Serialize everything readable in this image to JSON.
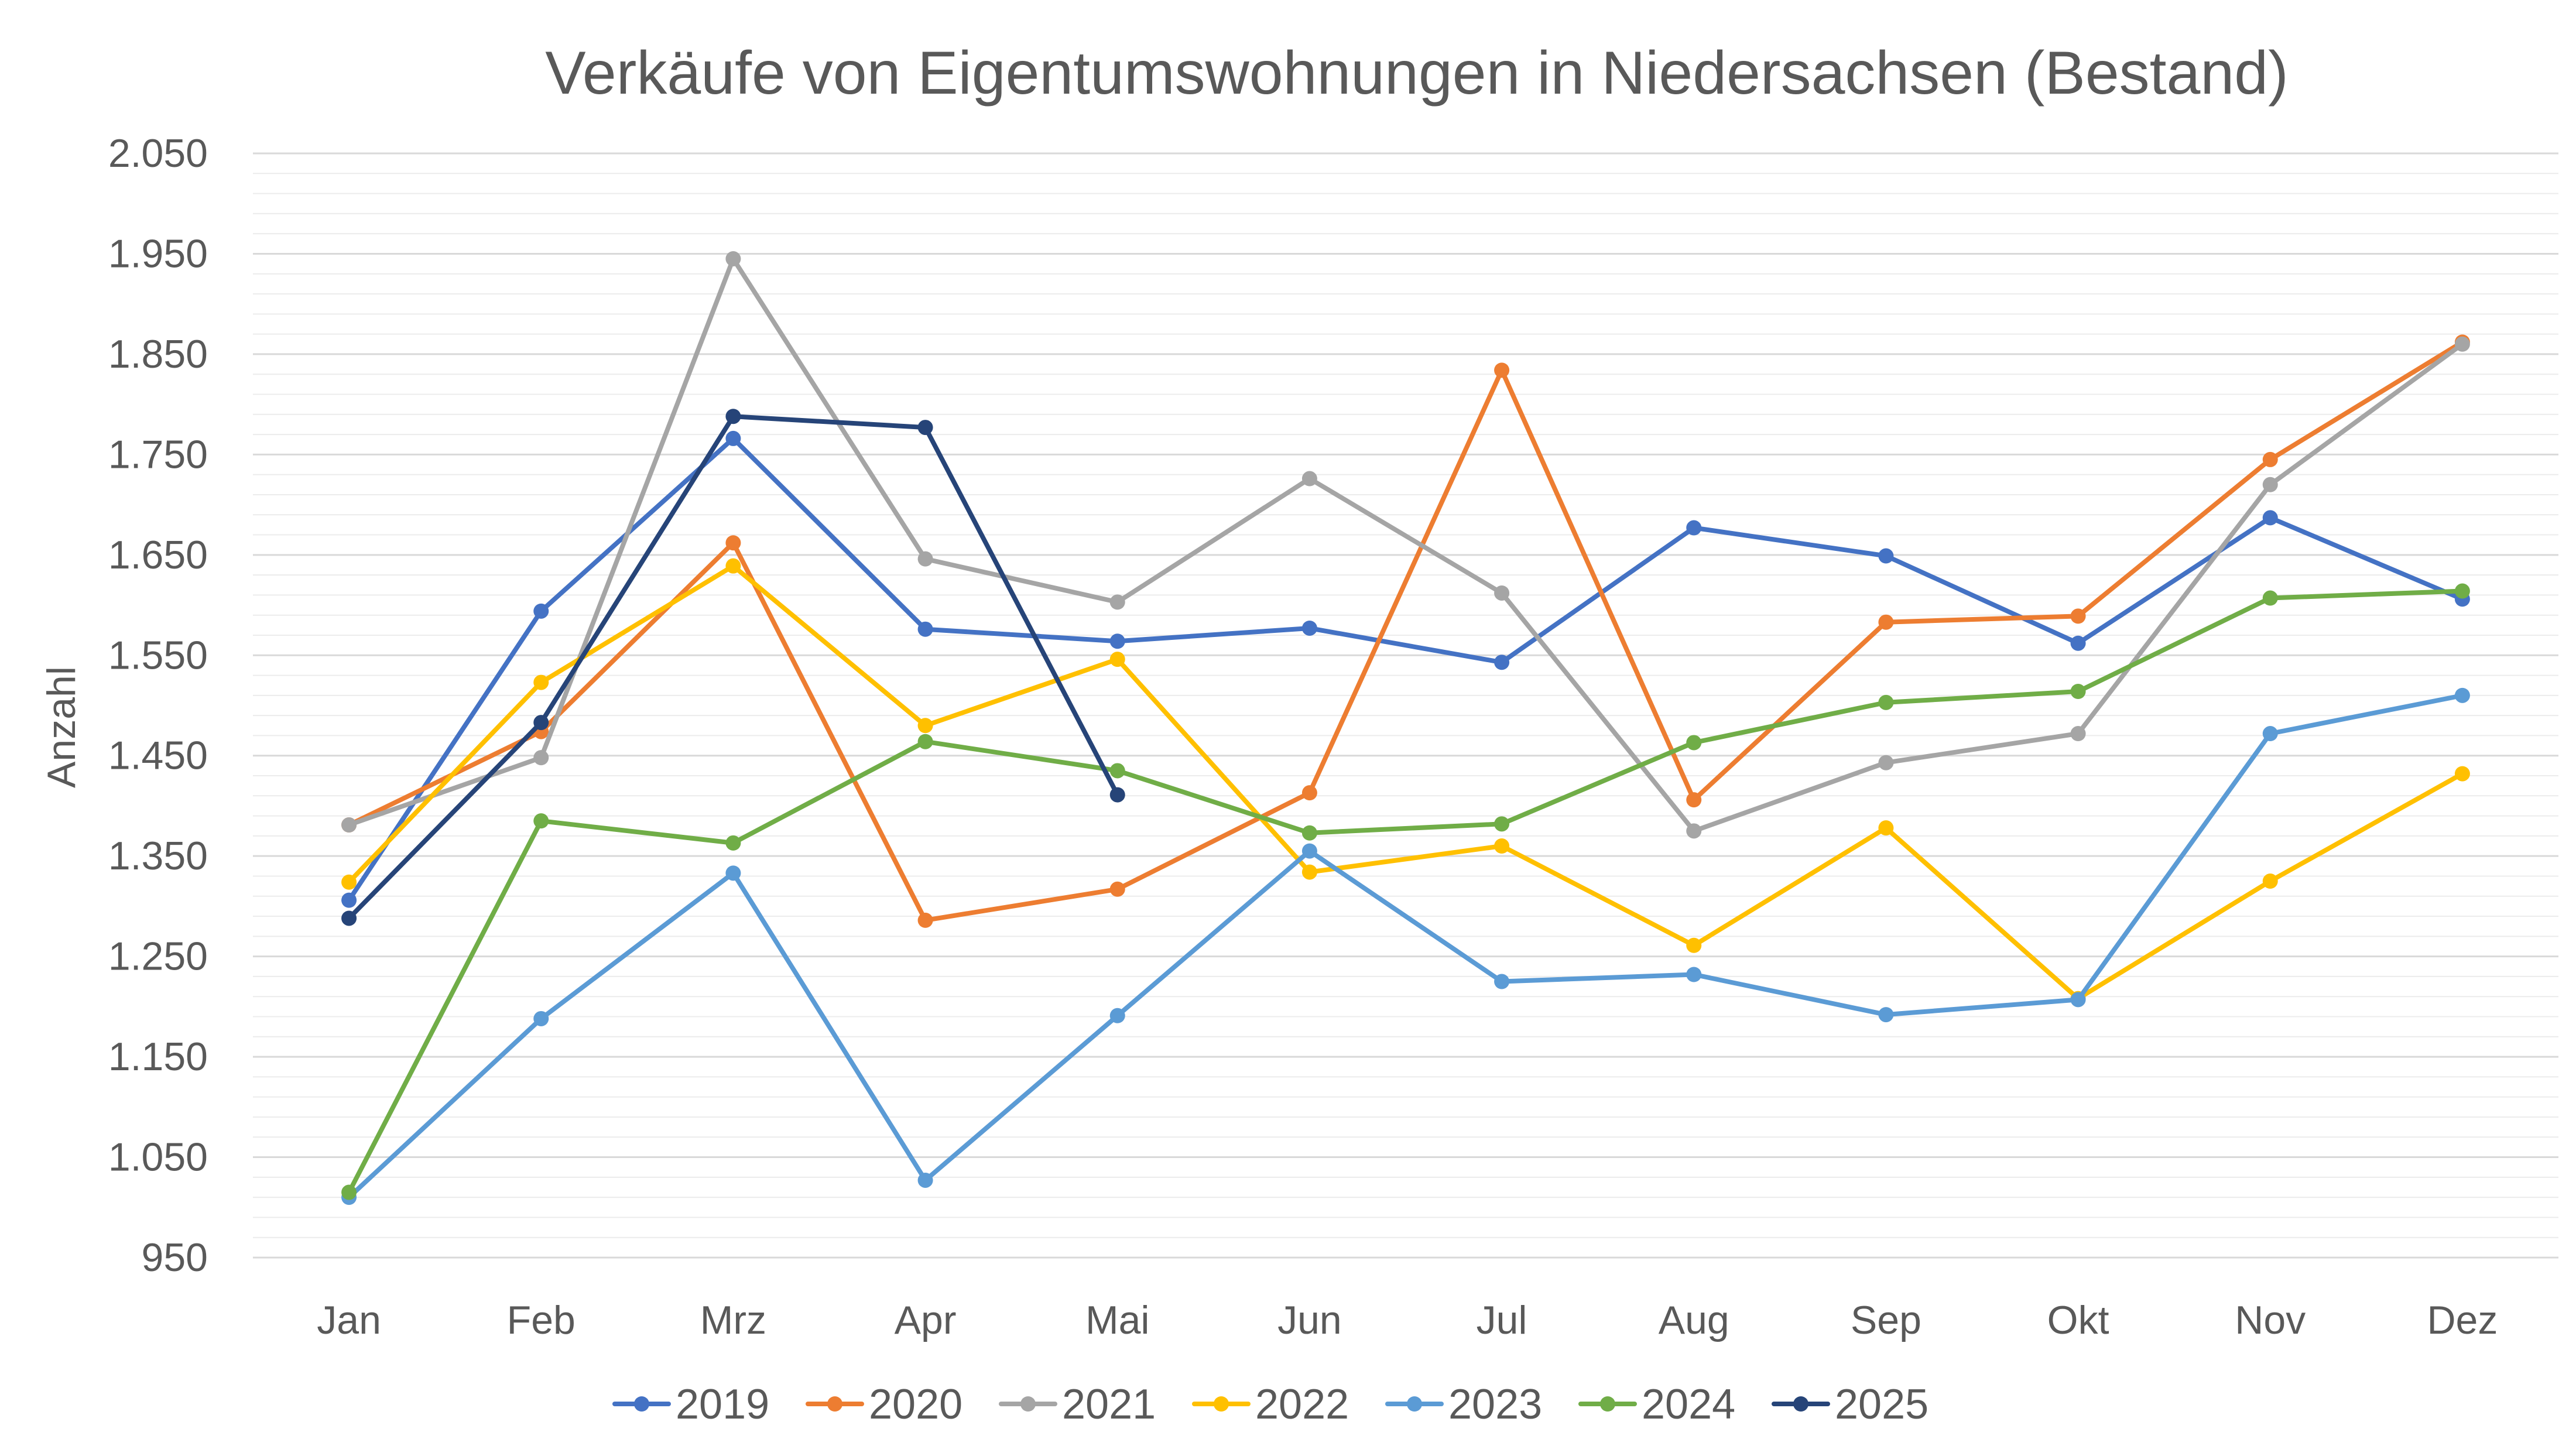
{
  "chart_data": {
    "type": "line",
    "title": "Verkäufe von Eigentumswohnungen in Niedersachsen (Bestand)",
    "xlabel": "",
    "ylabel": "Anzahl",
    "categories": [
      "Jan",
      "Feb",
      "Mrz",
      "Apr",
      "Mai",
      "Jun",
      "Jul",
      "Aug",
      "Sep",
      "Okt",
      "Nov",
      "Dez"
    ],
    "ylim": [
      950,
      2050
    ],
    "yticks": [
      950,
      1050,
      1150,
      1250,
      1350,
      1450,
      1550,
      1650,
      1750,
      1850,
      1950,
      2050
    ],
    "ytick_labels": [
      "950",
      "1.050",
      "1.150",
      "1.250",
      "1.350",
      "1.450",
      "1.550",
      "1.650",
      "1.750",
      "1.850",
      "1.950",
      "2.050"
    ],
    "grid": "major and minor horizontal",
    "legend_position": "bottom",
    "series": [
      {
        "name": "2019",
        "color": "#4472c4",
        "values": [
          1306,
          1594,
          1766,
          1576,
          1564,
          1577,
          1543,
          1677,
          1649,
          1562,
          1687,
          1606
        ]
      },
      {
        "name": "2020",
        "color": "#ed7d31",
        "values": [
          1381,
          1474,
          1662,
          1286,
          1317,
          1413,
          1834,
          1406,
          1583,
          1589,
          1745,
          1862
        ]
      },
      {
        "name": "2021",
        "color": "#a5a5a5",
        "values": [
          1381,
          1448,
          1945,
          1646,
          1603,
          1726,
          1612,
          1375,
          1443,
          1472,
          1720,
          1860
        ]
      },
      {
        "name": "2022",
        "color": "#ffc000",
        "values": [
          1324,
          1523,
          1639,
          1480,
          1546,
          1334,
          1360,
          1261,
          1378,
          1208,
          1325,
          1432
        ]
      },
      {
        "name": "2023",
        "color": "#5b9bd5",
        "values": [
          1010,
          1188,
          1333,
          1027,
          1191,
          1355,
          1225,
          1232,
          1192,
          1207,
          1472,
          1510
        ]
      },
      {
        "name": "2024",
        "color": "#70ad47",
        "values": [
          1015,
          1385,
          1363,
          1464,
          1435,
          1373,
          1382,
          1463,
          1503,
          1514,
          1607,
          1614
        ]
      },
      {
        "name": "2025",
        "color": "#264478",
        "values": [
          1288,
          1483,
          1788,
          1777,
          1411,
          null,
          null,
          null,
          null,
          null,
          null,
          null
        ]
      }
    ]
  }
}
